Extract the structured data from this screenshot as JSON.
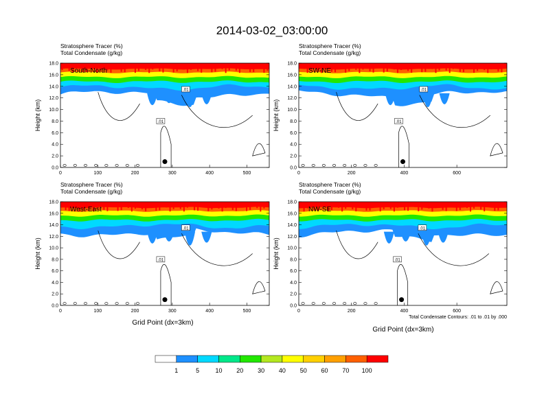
{
  "title": "2014-03-02_03:00:00",
  "panel_labels": [
    "Stratosphere Tracer   (%)",
    "Total Condensate   (g/kg)"
  ],
  "y_axis_label": "Height (km)",
  "x_axis_label": "Grid Point (dx=3km)",
  "contour_note": "Total Condensate Contours: .01 to .01 by .000",
  "contour_label": ".01",
  "colors": [
    "#ffffff",
    "#1e90ff",
    "#00d9ff",
    "#00e88a",
    "#22e800",
    "#b4e820",
    "#ffff00",
    "#ffd000",
    "#ffa000",
    "#ff6000",
    "#ff0000"
  ],
  "chart_data": [
    {
      "type": "heatmap",
      "cross_section": "South-North",
      "ylim": [
        0,
        18
      ],
      "xlim": [
        0,
        560
      ],
      "y_ticks": [
        "0.0",
        "2.0",
        "4.0",
        "6.0",
        "8.0",
        "10.0",
        "12.0",
        "14.0",
        "16.0",
        "18.0"
      ],
      "x_ticks": [
        {
          "v": 0,
          "label": "0"
        },
        {
          "v": 100,
          "label": "100"
        },
        {
          "v": 200,
          "label": "200"
        },
        {
          "v": 300,
          "label": "300"
        },
        {
          "v": 400,
          "label": "400"
        },
        {
          "v": 500,
          "label": "500"
        }
      ],
      "marker_x": 280
    },
    {
      "type": "heatmap",
      "cross_section": "SW-NE",
      "ylim": [
        0,
        18
      ],
      "xlim": [
        0,
        790
      ],
      "y_ticks": [
        "0.0",
        "2.0",
        "4.0",
        "6.0",
        "8.0",
        "10.0",
        "12.0",
        "14.0",
        "16.0",
        "18.0"
      ],
      "x_ticks": [
        {
          "v": 0,
          "label": "0"
        },
        {
          "v": 200,
          "label": "200"
        },
        {
          "v": 400,
          "label": "400"
        },
        {
          "v": 600,
          "label": "600"
        }
      ],
      "marker_x": 395
    },
    {
      "type": "heatmap",
      "cross_section": "West-East",
      "ylim": [
        0,
        18
      ],
      "xlim": [
        0,
        560
      ],
      "y_ticks": [
        "0.0",
        "2.0",
        "4.0",
        "6.0",
        "8.0",
        "10.0",
        "12.0",
        "14.0",
        "16.0",
        "18.0"
      ],
      "x_ticks": [
        {
          "v": 0,
          "label": "0"
        },
        {
          "v": 100,
          "label": "100"
        },
        {
          "v": 200,
          "label": "200"
        },
        {
          "v": 300,
          "label": "300"
        },
        {
          "v": 400,
          "label": "400"
        },
        {
          "v": 500,
          "label": "500"
        }
      ],
      "marker_x": 280
    },
    {
      "type": "heatmap",
      "cross_section": "NW-SE",
      "ylim": [
        0,
        18
      ],
      "xlim": [
        0,
        790
      ],
      "y_ticks": [
        "0.0",
        "2.0",
        "4.0",
        "6.0",
        "8.0",
        "10.0",
        "12.0",
        "14.0",
        "16.0",
        "18.0"
      ],
      "x_ticks": [
        {
          "v": 0,
          "label": "0"
        },
        {
          "v": 200,
          "label": "200"
        },
        {
          "v": 400,
          "label": "400"
        },
        {
          "v": 600,
          "label": "600"
        }
      ],
      "marker_x": 390
    }
  ],
  "colorbar_labels": [
    "1",
    "5",
    "10",
    "20",
    "30",
    "40",
    "50",
    "60",
    "70",
    "100"
  ]
}
